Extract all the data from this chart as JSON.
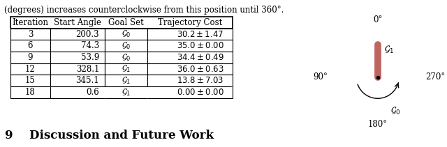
{
  "top_text": "(degrees) increases counterclockwise from this position until 360°.",
  "table_headers": [
    "Iteration",
    "Start Angle",
    "Goal Set",
    "Trajectory Cost"
  ],
  "table_rows": [
    [
      "3",
      "200.3",
      "$\\mathcal{G}_0$",
      "$30.2 \\pm 1.47$"
    ],
    [
      "6",
      "74.3",
      "$\\mathcal{G}_0$",
      "$35.0 \\pm 0.00$"
    ],
    [
      "9",
      "53.9",
      "$\\mathcal{G}_0$",
      "$34.4 \\pm 0.49$"
    ],
    [
      "12",
      "328.1",
      "$\\mathcal{G}_1$",
      "$36.0 \\pm 0.63$"
    ],
    [
      "15",
      "345.1",
      "$\\mathcal{G}_1$",
      "$13.8 \\pm 7.03$"
    ],
    [
      "18",
      "0.6",
      "$\\mathcal{G}_1$",
      "$0.00 \\pm 0.00$"
    ]
  ],
  "section_number": "9",
  "section_title": "Discussion and Future Work",
  "compass_labels": {
    "top": "0°",
    "right": "270°",
    "bottom": "180°",
    "left": "90°"
  },
  "g0_label": "$\\mathcal{G}_0$",
  "g1_label": "$\\mathcal{G}_1$",
  "arrow_color": "#b85450",
  "background_color": "#ffffff"
}
